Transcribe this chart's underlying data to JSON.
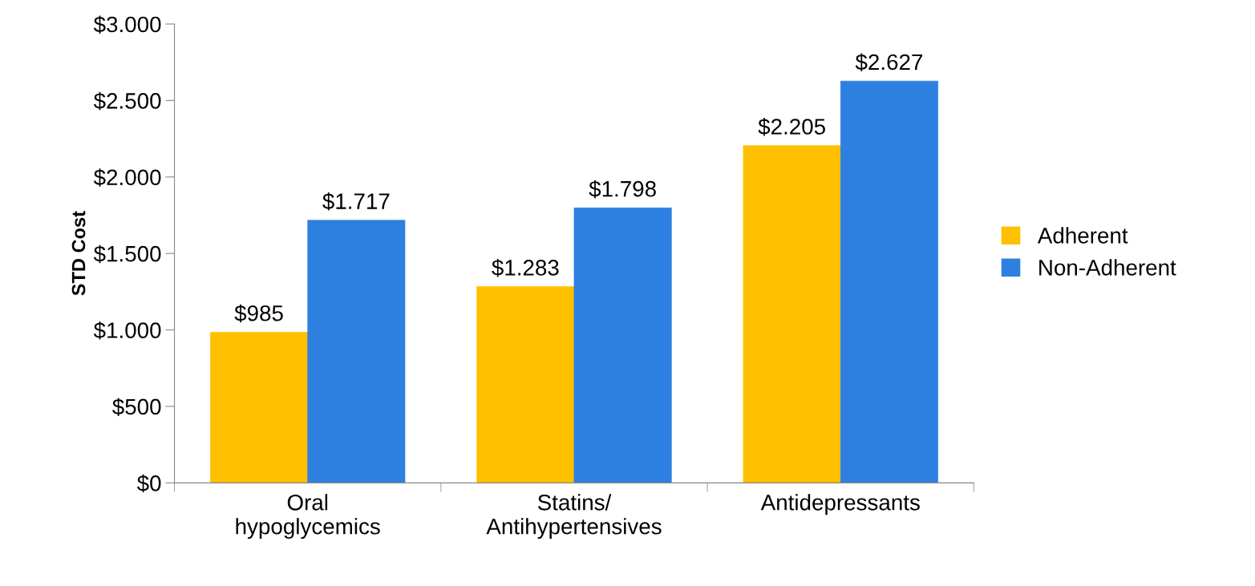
{
  "chart_data": {
    "type": "bar",
    "ylabel": "STD Cost",
    "categories": [
      "Oral\nhypoglycemics",
      "Statins/\nAntihypertensives",
      "Antidepressants"
    ],
    "series": [
      {
        "name": "Adherent",
        "color": "#ffc000",
        "values": [
          985,
          1283,
          2205
        ],
        "value_labels": [
          "$985",
          "$1.283",
          "$2.205"
        ]
      },
      {
        "name": "Non-Adherent",
        "color": "#2e80e0",
        "values": [
          1717,
          1798,
          2627
        ],
        "value_labels": [
          "$1.717",
          "$1.798",
          "$2.627"
        ]
      }
    ],
    "ylim": [
      0,
      3000
    ],
    "yticks": [
      {
        "value": 0,
        "label": "$0"
      },
      {
        "value": 500,
        "label": "$500"
      },
      {
        "value": 1000,
        "label": "$1.000"
      },
      {
        "value": 1500,
        "label": "$1.500"
      },
      {
        "value": 2000,
        "label": "$2.000"
      },
      {
        "value": 2500,
        "label": "$2.500"
      },
      {
        "value": 3000,
        "label": "$3.000"
      }
    ],
    "grid": false,
    "legend": "right"
  }
}
